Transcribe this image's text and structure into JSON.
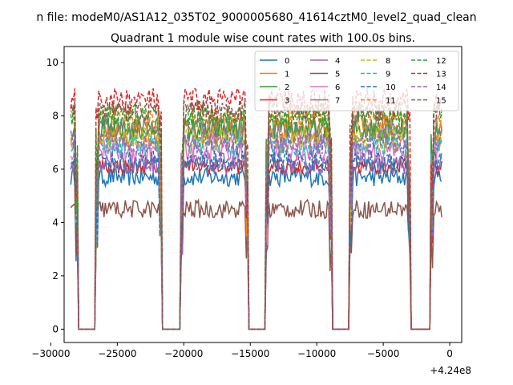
{
  "chart_data": {
    "type": "line",
    "suptitle": "n file: modeM0/AS1A12_035T02_9000005680_41614cztM0_level2_quad_clean",
    "title": "Quadrant 1 module wise count rates with 100.0s bins.",
    "xlabel": "",
    "ylabel": "",
    "x_offset_label": "+4.24e8",
    "xlim": [
      -29000,
      900
    ],
    "ylim": [
      -0.5,
      10.6
    ],
    "xticks": [
      -30000,
      -25000,
      -20000,
      -15000,
      -10000,
      -5000,
      0
    ],
    "xtick_labels": [
      "−30000",
      "−25000",
      "−20000",
      "−15000",
      "−10000",
      "−5000",
      "0"
    ],
    "yticks": [
      0,
      2,
      4,
      6,
      8,
      10
    ],
    "ytick_labels": [
      "0",
      "2",
      "4",
      "6",
      "8",
      "10"
    ],
    "bin_seconds": 100,
    "x_start": -28500,
    "x_step": 100,
    "x_end": -600,
    "gaps": [
      [
        -27900,
        -26700
      ],
      [
        -21600,
        -20300
      ],
      [
        -15100,
        -13900
      ],
      [
        -8800,
        -7600
      ],
      [
        -2900,
        -1500
      ]
    ],
    "legend_position": "upper-right",
    "legend_columns": 4,
    "series": [
      {
        "name": "0",
        "color": "#1f77b4",
        "style": "solid",
        "level": 5.7,
        "noise": 0.35
      },
      {
        "name": "1",
        "color": "#ff7f0e",
        "style": "solid",
        "level": 7.3,
        "noise": 0.45
      },
      {
        "name": "2",
        "color": "#2ca02c",
        "style": "solid",
        "level": 7.5,
        "noise": 0.45
      },
      {
        "name": "3",
        "color": "#d62728",
        "style": "solid",
        "level": 6.1,
        "noise": 0.3
      },
      {
        "name": "4",
        "color": "#9467bd",
        "style": "solid",
        "level": 6.2,
        "noise": 0.4
      },
      {
        "name": "5",
        "color": "#8c564b",
        "style": "solid",
        "level": 4.5,
        "noise": 0.35
      },
      {
        "name": "6",
        "color": "#e377c2",
        "style": "solid",
        "level": 6.7,
        "noise": 0.45
      },
      {
        "name": "7",
        "color": "#7f7f7f",
        "style": "solid",
        "level": 7.6,
        "noise": 0.45
      },
      {
        "name": "8",
        "color": "#bcbd22",
        "style": "dashed",
        "level": 7.1,
        "noise": 0.45
      },
      {
        "name": "9",
        "color": "#17becf",
        "style": "dashed",
        "level": 6.9,
        "noise": 0.4
      },
      {
        "name": "10",
        "color": "#1f77b4",
        "style": "dashed",
        "level": 6.3,
        "noise": 0.4
      },
      {
        "name": "11",
        "color": "#ff7f0e",
        "style": "dashed",
        "level": 7.9,
        "noise": 0.45
      },
      {
        "name": "12",
        "color": "#2ca02c",
        "style": "dashed",
        "level": 8.0,
        "noise": 0.45
      },
      {
        "name": "13",
        "color": "#d62728",
        "style": "dashed",
        "level": 8.6,
        "noise": 0.45
      },
      {
        "name": "14",
        "color": "#9467bd",
        "style": "dashed",
        "level": 7.0,
        "noise": 0.45
      },
      {
        "name": "15",
        "color": "#8c564b",
        "style": "dashed",
        "level": 8.2,
        "noise": 0.4
      }
    ]
  }
}
